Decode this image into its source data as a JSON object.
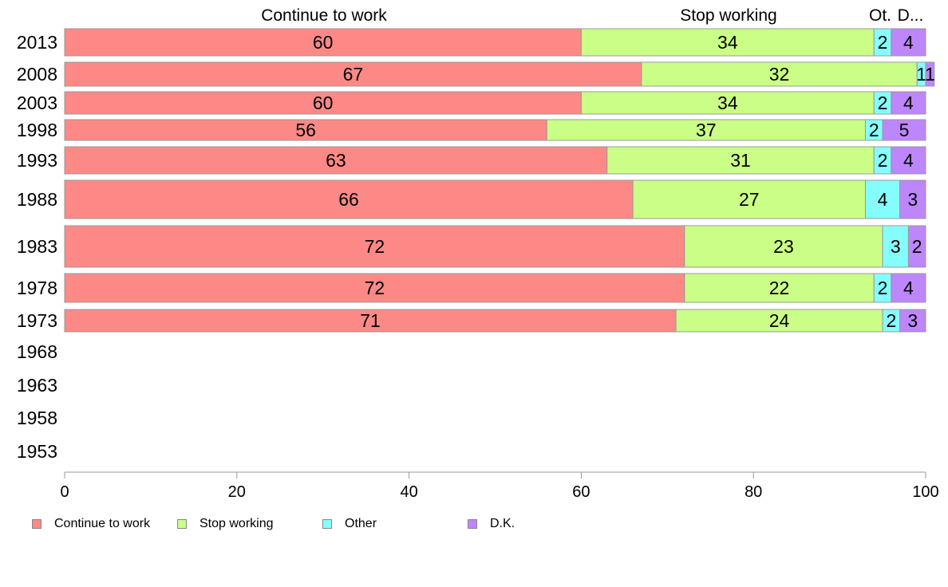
{
  "colors": {
    "continue": "#fd8986",
    "stop": "#cbfe87",
    "other": "#86fdfd",
    "dk": "#bd86fd"
  },
  "chart_data": {
    "type": "bar",
    "orientation": "horizontal",
    "stacked": true,
    "title": "",
    "xlabel": "",
    "ylabel": "",
    "xlim": [
      0,
      100
    ],
    "x_ticks": [
      "0",
      "20",
      "40",
      "60",
      "80",
      "100"
    ],
    "top_labels": [
      "Continue to work",
      "Stop working",
      "Ot.",
      "D..."
    ],
    "categories": [
      "2013",
      "2008",
      "2003",
      "1998",
      "1993",
      "1988",
      "1983",
      "1978",
      "1973",
      "1968",
      "1963",
      "1958",
      "1953"
    ],
    "series": [
      {
        "name": "Continue to work",
        "values": [
          60,
          67,
          60,
          56,
          63,
          66,
          72,
          72,
          71,
          null,
          null,
          null,
          null
        ]
      },
      {
        "name": "Stop working",
        "values": [
          34,
          32,
          34,
          37,
          31,
          27,
          23,
          22,
          24,
          null,
          null,
          null,
          null
        ]
      },
      {
        "name": "Other",
        "values": [
          2,
          1,
          2,
          2,
          2,
          4,
          3,
          2,
          2,
          null,
          null,
          null,
          null
        ]
      },
      {
        "name": "D.K.",
        "values": [
          4,
          1,
          4,
          5,
          4,
          3,
          2,
          4,
          3,
          null,
          null,
          null,
          null
        ]
      }
    ],
    "legend": [
      "Continue to work",
      "Stop working",
      "Other",
      "D.K."
    ],
    "legend_position": "bottom-left"
  }
}
